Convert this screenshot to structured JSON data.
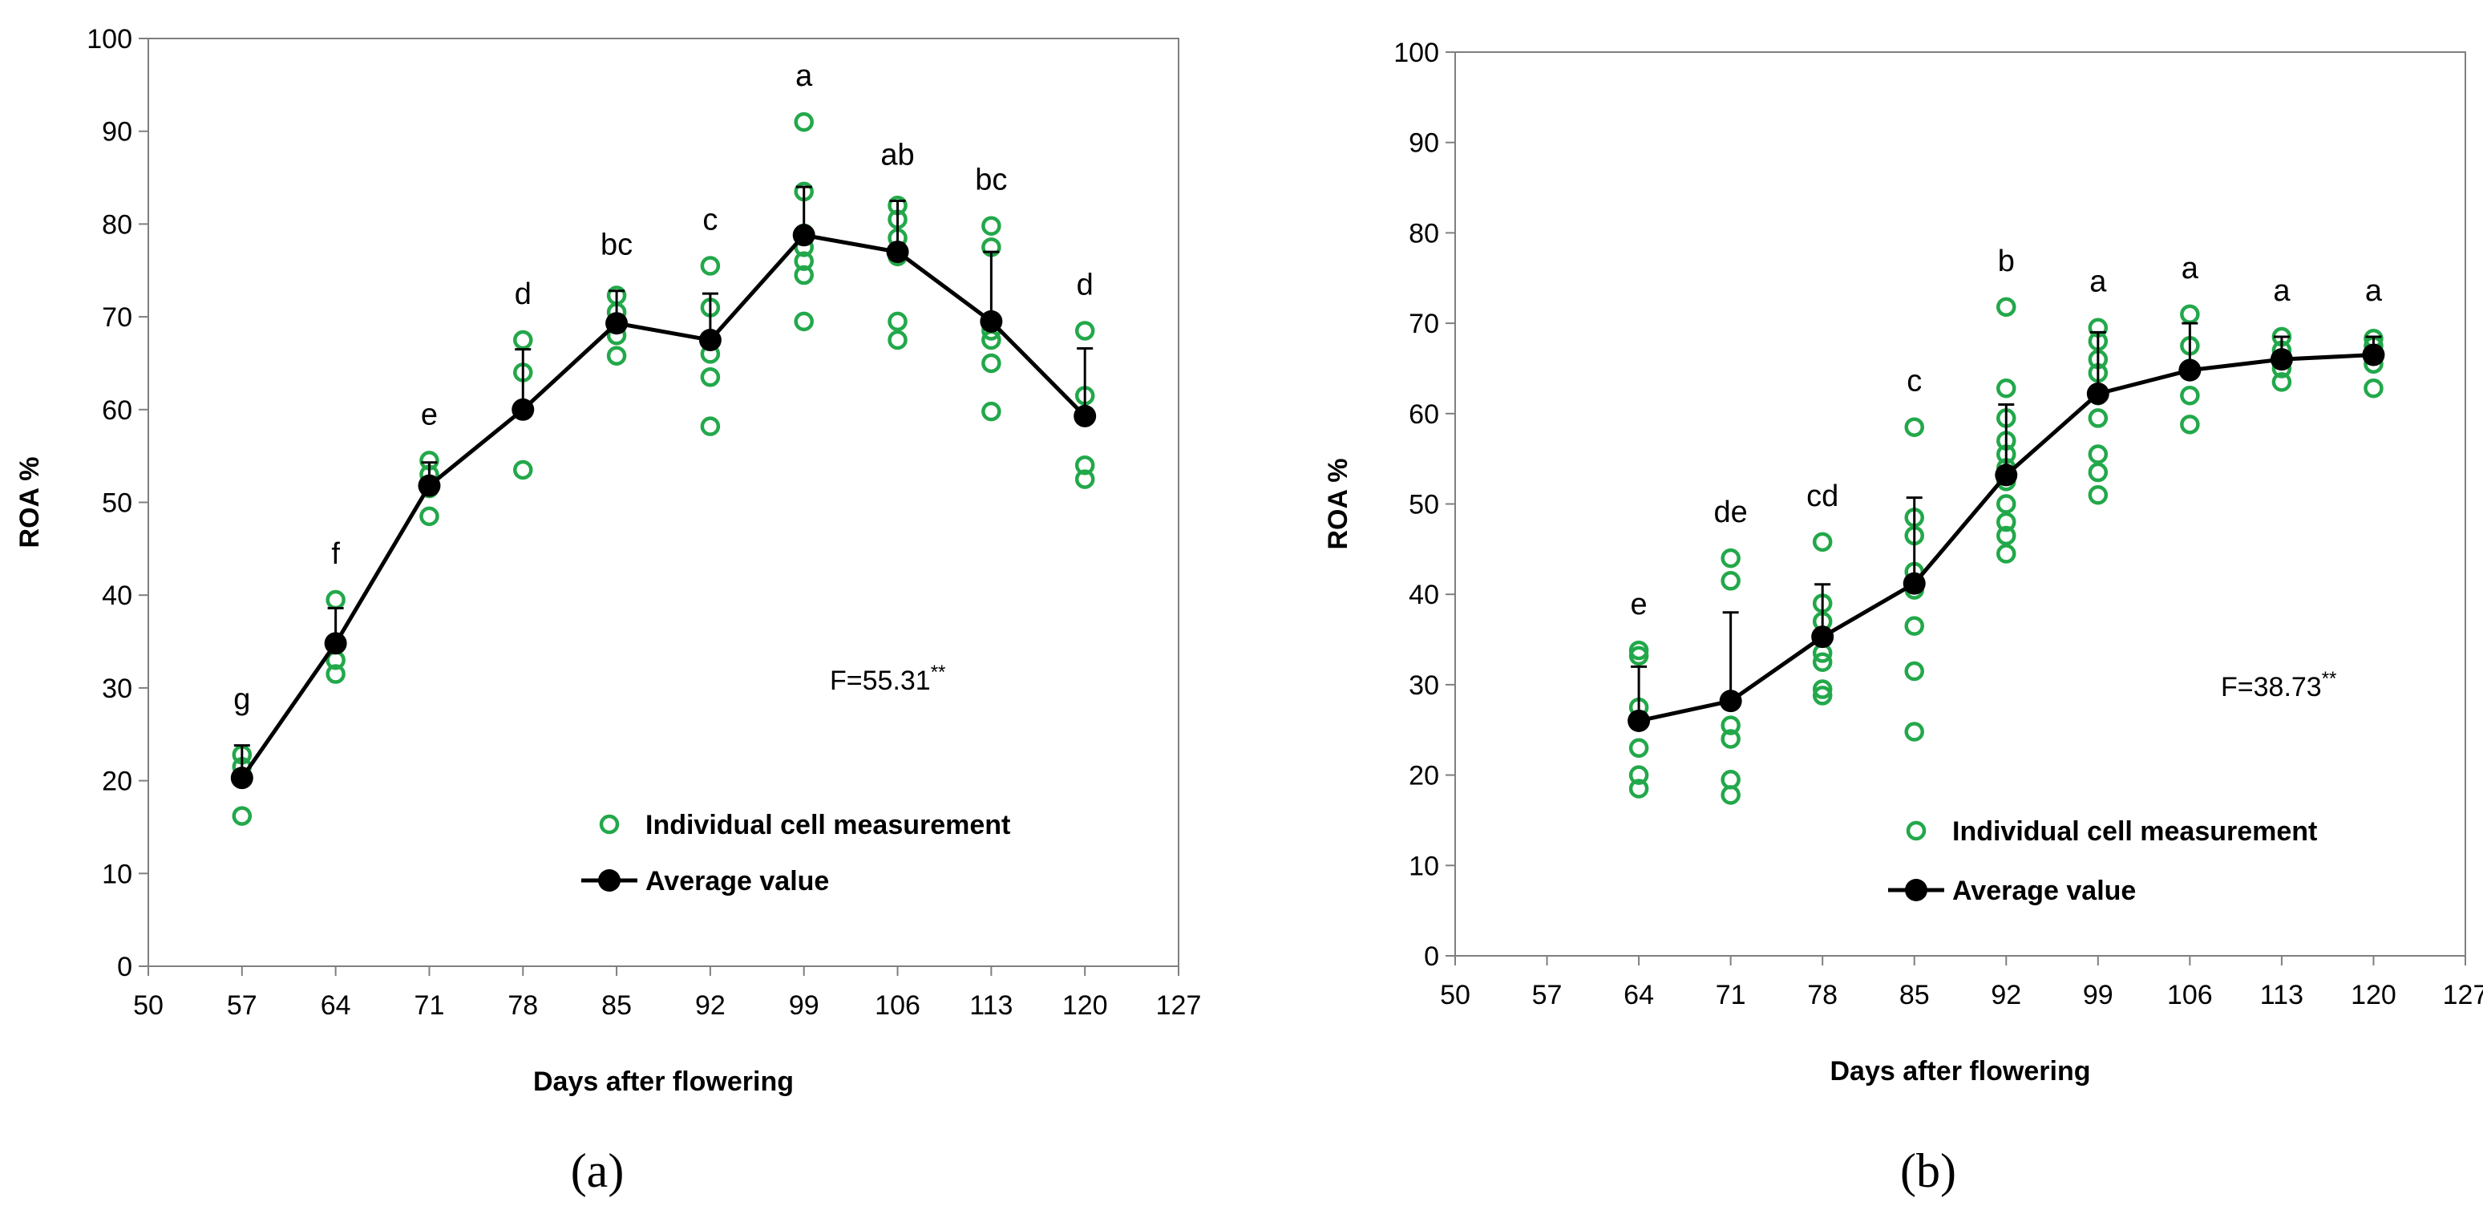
{
  "chart_data": [
    {
      "type": "scatter",
      "panel_label": "(a)",
      "title": "",
      "xlabel": "Days after flowering",
      "ylabel": "ROA %",
      "xlim": [
        50,
        127
      ],
      "ylim": [
        0,
        100
      ],
      "x_ticks": [
        50,
        57,
        64,
        71,
        78,
        85,
        92,
        99,
        106,
        113,
        120,
        127
      ],
      "y_ticks": [
        0,
        10,
        20,
        30,
        40,
        50,
        60,
        70,
        80,
        90,
        100
      ],
      "x_tick_labels": [
        "50",
        "57",
        "64",
        "71",
        "78",
        "85",
        "92",
        "99",
        "106",
        "113",
        "120",
        "127"
      ],
      "y_tick_labels": [
        "0",
        "10",
        "20",
        "30",
        "40",
        "50",
        "60",
        "70",
        "80",
        "90",
        "100"
      ],
      "annotation": "F=55.31",
      "annotation_sup": "**",
      "legend": [
        "Individual cell measurement",
        "Average value"
      ],
      "series": [
        {
          "name": "Individual cell measurement",
          "color": "#22a84a",
          "points": [
            [
              57,
              16.2
            ],
            [
              57,
              21.5
            ],
            [
              57,
              22.8
            ],
            [
              64,
              31.5
            ],
            [
              64,
              33.0
            ],
            [
              64,
              39.5
            ],
            [
              71,
              48.5
            ],
            [
              71,
              51.5
            ],
            [
              71,
              53.0
            ],
            [
              71,
              54.5
            ],
            [
              78,
              53.5
            ],
            [
              78,
              60.0
            ],
            [
              78,
              64.0
            ],
            [
              78,
              67.5
            ],
            [
              85,
              65.8
            ],
            [
              85,
              68.0
            ],
            [
              85,
              70.5
            ],
            [
              85,
              72.3
            ],
            [
              92,
              58.2
            ],
            [
              92,
              63.5
            ],
            [
              92,
              66.0
            ],
            [
              92,
              71.0
            ],
            [
              92,
              75.5
            ],
            [
              99,
              69.5
            ],
            [
              99,
              74.5
            ],
            [
              99,
              76.0
            ],
            [
              99,
              77.5
            ],
            [
              99,
              79.0
            ],
            [
              99,
              83.5
            ],
            [
              99,
              91.0
            ],
            [
              106,
              67.5
            ],
            [
              106,
              69.5
            ],
            [
              106,
              76.5
            ],
            [
              106,
              78.5
            ],
            [
              106,
              80.5
            ],
            [
              106,
              82.0
            ],
            [
              113,
              59.8
            ],
            [
              113,
              65.0
            ],
            [
              113,
              67.5
            ],
            [
              113,
              68.5
            ],
            [
              113,
              77.5
            ],
            [
              113,
              79.8
            ],
            [
              120,
              52.5
            ],
            [
              120,
              54.0
            ],
            [
              120,
              61.5
            ],
            [
              120,
              68.5
            ]
          ]
        },
        {
          "name": "Average value",
          "color": "#000000",
          "x": [
            57,
            64,
            71,
            78,
            85,
            92,
            99,
            106,
            113,
            120
          ],
          "y": [
            20.3,
            34.8,
            51.8,
            60.0,
            69.3,
            67.5,
            78.8,
            77.0,
            69.5,
            59.3
          ],
          "error": [
            3.5,
            3.8,
            2.5,
            6.5,
            3.5,
            5.0,
            5.2,
            5.5,
            7.5,
            7.3
          ]
        }
      ],
      "significance_letters": [
        {
          "x": 57,
          "label": "g"
        },
        {
          "x": 64,
          "label": "f"
        },
        {
          "x": 71,
          "label": "e"
        },
        {
          "x": 78,
          "label": "d"
        },
        {
          "x": 85,
          "label": "bc"
        },
        {
          "x": 92,
          "label": "c"
        },
        {
          "x": 99,
          "label": "a"
        },
        {
          "x": 106,
          "label": "ab"
        },
        {
          "x": 113,
          "label": "bc"
        },
        {
          "x": 120,
          "label": "d"
        }
      ]
    },
    {
      "type": "scatter",
      "panel_label": "(b)",
      "title": "",
      "xlabel": "Days after flowering",
      "ylabel": "ROA %",
      "xlim": [
        50,
        127
      ],
      "ylim": [
        0,
        100
      ],
      "x_ticks": [
        50,
        57,
        64,
        71,
        78,
        85,
        92,
        99,
        106,
        113,
        120,
        127
      ],
      "y_ticks": [
        0,
        10,
        20,
        30,
        40,
        50,
        60,
        70,
        80,
        90,
        100
      ],
      "x_tick_labels": [
        "50",
        "57",
        "64",
        "71",
        "78",
        "85",
        "92",
        "99",
        "106",
        "113",
        "120",
        "127"
      ],
      "y_tick_labels": [
        "0",
        "10",
        "20",
        "30",
        "40",
        "50",
        "60",
        "70",
        "80",
        "90",
        "100"
      ],
      "annotation": "F=38.73",
      "annotation_sup": "**",
      "legend": [
        "Individual cell measurement",
        "Average value"
      ],
      "series": [
        {
          "name": "Individual cell measurement",
          "color": "#22a84a",
          "points": [
            [
              64,
              18.5
            ],
            [
              64,
              20.0
            ],
            [
              64,
              23.0
            ],
            [
              64,
              27.5
            ],
            [
              64,
              33.2
            ],
            [
              64,
              33.8
            ],
            [
              71,
              17.8
            ],
            [
              71,
              19.5
            ],
            [
              71,
              24.0
            ],
            [
              71,
              25.5
            ],
            [
              71,
              41.5
            ],
            [
              71,
              44.0
            ],
            [
              78,
              28.8
            ],
            [
              78,
              29.5
            ],
            [
              78,
              32.5
            ],
            [
              78,
              33.5
            ],
            [
              78,
              37.0
            ],
            [
              78,
              39.0
            ],
            [
              78,
              45.8
            ],
            [
              85,
              24.8
            ],
            [
              85,
              31.5
            ],
            [
              85,
              36.5
            ],
            [
              85,
              40.5
            ],
            [
              85,
              42.5
            ],
            [
              85,
              46.5
            ],
            [
              85,
              48.5
            ],
            [
              85,
              58.5
            ],
            [
              92,
              44.5
            ],
            [
              92,
              46.5
            ],
            [
              92,
              48.0
            ],
            [
              92,
              50.0
            ],
            [
              92,
              52.5
            ],
            [
              92,
              54.0
            ],
            [
              92,
              55.5
            ],
            [
              92,
              57.0
            ],
            [
              92,
              59.5
            ],
            [
              92,
              62.8
            ],
            [
              92,
              71.8
            ],
            [
              99,
              51.0
            ],
            [
              99,
              53.5
            ],
            [
              99,
              55.5
            ],
            [
              99,
              59.5
            ],
            [
              99,
              62.0
            ],
            [
              99,
              64.5
            ],
            [
              99,
              66.0
            ],
            [
              99,
              68.0
            ],
            [
              99,
              69.5
            ],
            [
              106,
              58.8
            ],
            [
              106,
              62.0
            ],
            [
              106,
              65.0
            ],
            [
              106,
              67.5
            ],
            [
              106,
              71.0
            ],
            [
              113,
              63.5
            ],
            [
              113,
              65.0
            ],
            [
              113,
              66.0
            ],
            [
              113,
              67.0
            ],
            [
              113,
              68.5
            ],
            [
              120,
              62.8
            ],
            [
              120,
              65.5
            ],
            [
              120,
              66.5
            ],
            [
              120,
              67.5
            ],
            [
              120,
              68.3
            ]
          ]
        },
        {
          "name": "Average value",
          "color": "#000000",
          "x": [
            64,
            71,
            78,
            85,
            92,
            99,
            106,
            113,
            120
          ],
          "y": [
            26.0,
            28.2,
            35.3,
            41.2,
            53.2,
            62.2,
            64.8,
            66.0,
            66.5
          ],
          "error": [
            6.0,
            9.8,
            5.8,
            9.5,
            7.8,
            6.8,
            5.2,
            2.5,
            2.0
          ]
        }
      ],
      "significance_letters": [
        {
          "x": 64,
          "label": "e"
        },
        {
          "x": 71,
          "label": "de"
        },
        {
          "x": 78,
          "label": "cd"
        },
        {
          "x": 85,
          "label": "c"
        },
        {
          "x": 92,
          "label": "b"
        },
        {
          "x": 99,
          "label": "a"
        },
        {
          "x": 106,
          "label": "a"
        },
        {
          "x": 113,
          "label": "a"
        },
        {
          "x": 120,
          "label": "a"
        }
      ]
    }
  ]
}
